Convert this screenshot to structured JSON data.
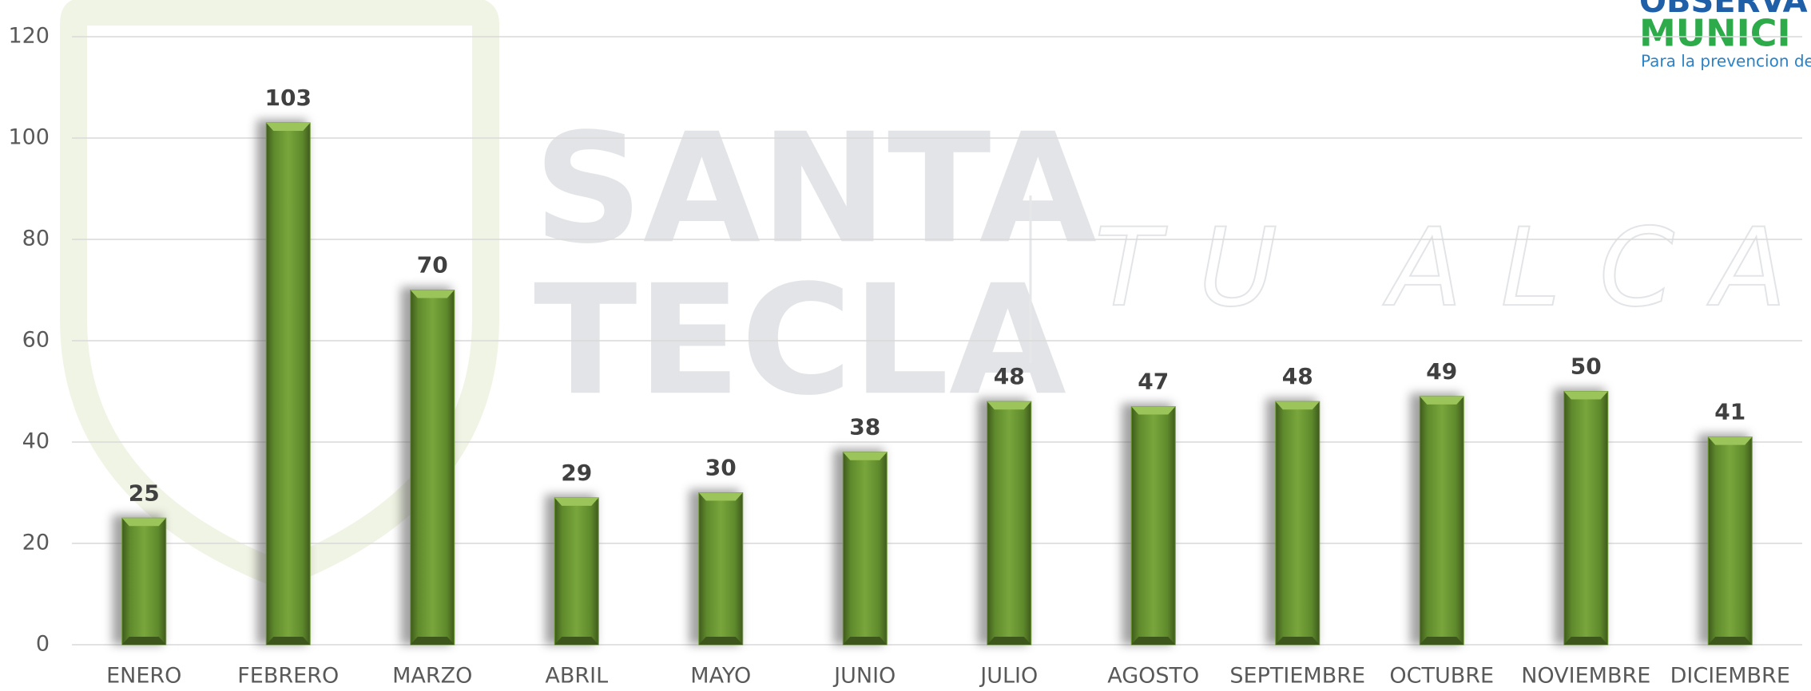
{
  "chart_data": {
    "type": "bar",
    "categories": [
      "ENERO",
      "FEBRERO",
      "MARZO",
      "ABRIL",
      "MAYO",
      "JUNIO",
      "JULIO",
      "AGOSTO",
      "SEPTIEMBRE",
      "OCTUBRE",
      "NOVIEMBRE",
      "DICIEMBRE"
    ],
    "values": [
      25,
      103,
      70,
      29,
      30,
      38,
      48,
      47,
      48,
      49,
      50,
      41
    ],
    "color": "#6f9a35",
    "ylim": [
      0,
      120
    ],
    "yticks": [
      0,
      20,
      40,
      60,
      80,
      100,
      120
    ],
    "grid": true,
    "watermark": {
      "line1": "SANTA",
      "line2": "TECLA",
      "tagline": "TU ALCALDÍA"
    },
    "logo": {
      "line1": "OBSERVAT",
      "line2": "MUNICI",
      "line3": "Para la prevencion de"
    }
  }
}
